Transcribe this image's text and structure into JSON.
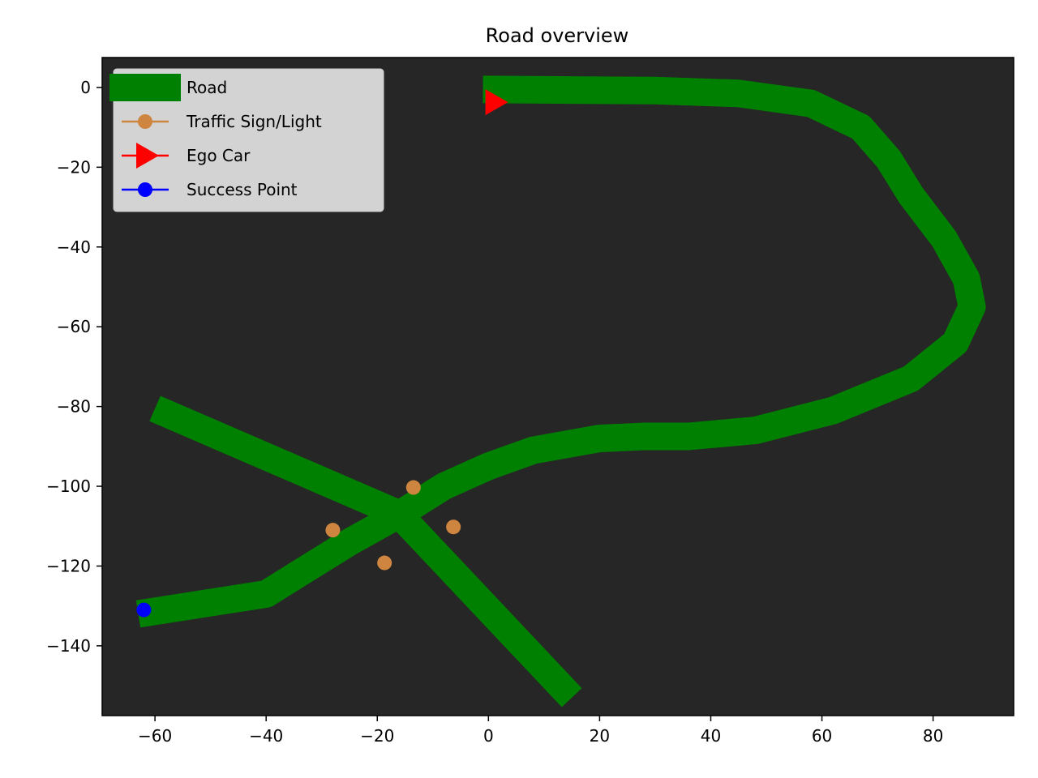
{
  "chart_data": {
    "type": "line",
    "title": "Road overview",
    "xlabel": "",
    "ylabel": "",
    "xlim": [
      -69.5,
      94.5
    ],
    "ylim": [
      -157.5,
      7.5
    ],
    "xticks": [
      -60,
      -40,
      -20,
      0,
      20,
      40,
      60,
      80
    ],
    "yticks": [
      0,
      -20,
      -40,
      -60,
      -80,
      -100,
      -120,
      -140
    ],
    "xtick_labels": [
      "−60",
      "−40",
      "−20",
      "0",
      "20",
      "40",
      "60",
      "80"
    ],
    "ytick_labels": [
      "0",
      "−20",
      "−40",
      "−60",
      "−80",
      "−100",
      "−120",
      "−140"
    ],
    "grid": false,
    "background": "#262626",
    "legend": {
      "placement": "top-left",
      "entries": [
        {
          "label": "Road",
          "color": "#008000",
          "marker": "thick-line"
        },
        {
          "label": "Traffic Sign/Light",
          "color": "#cd853f",
          "marker": "circle"
        },
        {
          "label": "Ego Car",
          "color": "#ff0000",
          "marker": "triangle-right"
        },
        {
          "label": "Success Point",
          "color": "#0000ff",
          "marker": "circle"
        }
      ]
    },
    "series": [
      {
        "name": "Road",
        "color": "#008000",
        "kind": "road",
        "segments": [
          {
            "x": [
              -1,
              10,
              30,
              45,
              58,
              67,
              72,
              76,
              82,
              86,
              87,
              84,
              76,
              62,
              48,
              36,
              28,
              20,
              8,
              0,
              -8,
              -16,
              -25,
              -40,
              -63
            ],
            "y": [
              -0.5,
              -0.6,
              -0.8,
              -1.5,
              -4,
              -10,
              -18,
              -27,
              -38,
              -48,
              -55,
              -64,
              -73,
              -81,
              -86,
              -87.5,
              -87.5,
              -88,
              -91,
              -95,
              -100,
              -107,
              -114,
              -127,
              -132
            ]
          },
          {
            "x": [
              -60,
              -16
            ],
            "y": [
              -80.5,
              -107
            ]
          },
          {
            "x": [
              -17.5,
              15
            ],
            "y": [
              -105,
              -153
            ]
          }
        ]
      },
      {
        "name": "Traffic Sign/Light",
        "color": "#cd853f",
        "kind": "points",
        "x": [
          -13.5,
          -28,
          -6.3,
          -18.7
        ],
        "y": [
          -100.3,
          -111,
          -110.2,
          -119.2
        ]
      },
      {
        "name": "Ego Car",
        "color": "#ff0000",
        "kind": "triangle-right",
        "x": [
          1.2
        ],
        "y": [
          -3.7
        ]
      },
      {
        "name": "Success Point",
        "color": "#0000ff",
        "kind": "points",
        "x": [
          -62
        ],
        "y": [
          -131
        ]
      }
    ]
  }
}
